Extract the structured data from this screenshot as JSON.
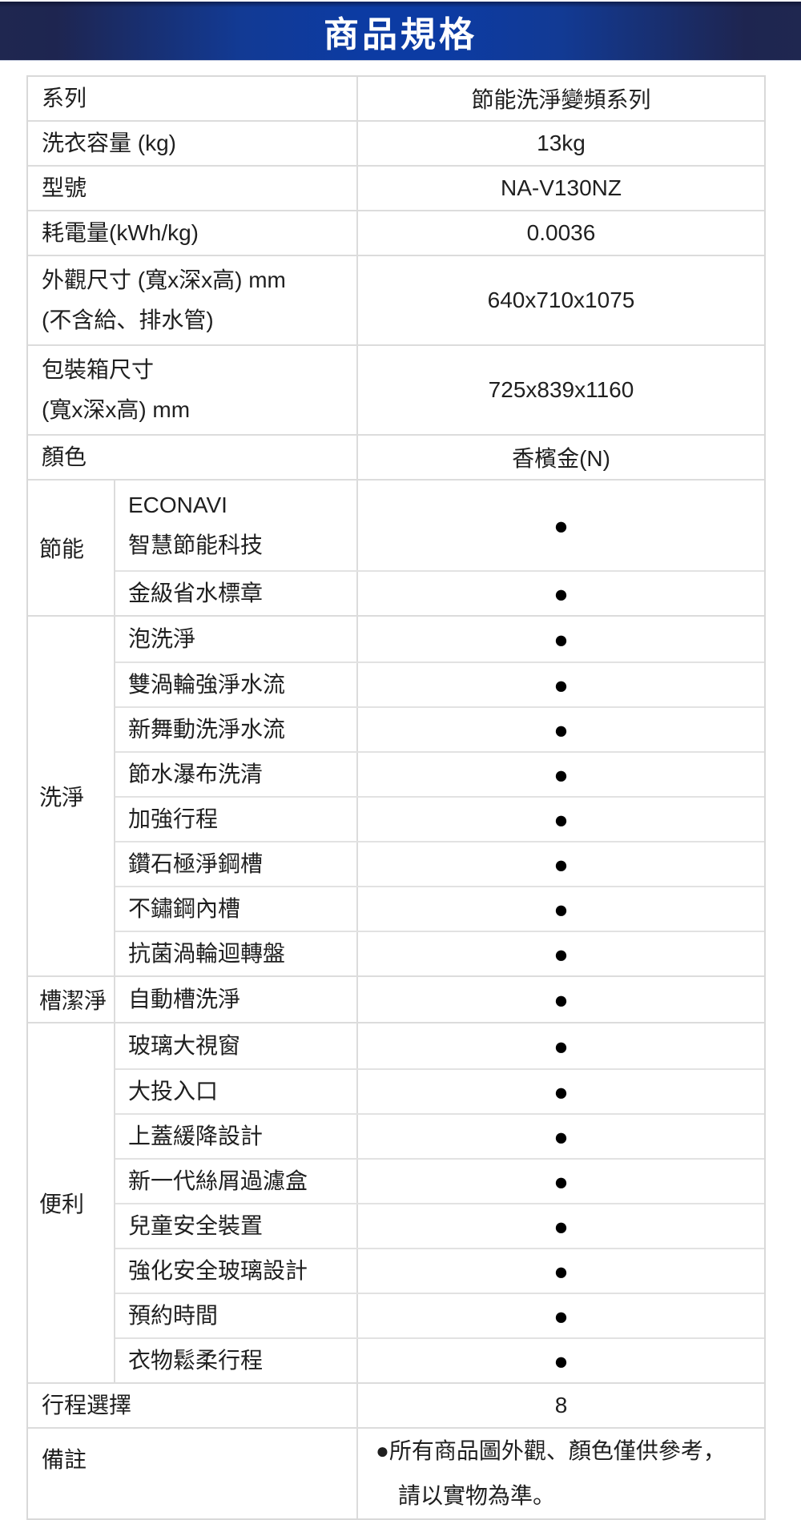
{
  "header": {
    "title": "商品規格"
  },
  "colors": {
    "banner_edge": "#1f2750",
    "banner_center": "#0c3ba3",
    "border": "#dcdcdc",
    "text": "#1f1f1f",
    "dot": "#000000"
  },
  "table": {
    "dot": "●",
    "simple_rows": [
      {
        "label": "系列",
        "value": "節能洗淨變頻系列"
      },
      {
        "label": "洗衣容量 (kg)",
        "value": "13kg"
      },
      {
        "label": "型號",
        "value": "NA-V130NZ"
      },
      {
        "label": "耗電量(kWh/kg)",
        "value": "0.0036"
      },
      {
        "label": "外觀尺寸 (寬x深x高) mm",
        "label2": "(不含給、排水管)",
        "value": "640x710x1075"
      },
      {
        "label": "包裝箱尺寸",
        "label2": "(寬x深x高) mm",
        "value": "725x839x1160"
      },
      {
        "label": "顏色",
        "value": "香檳金(N)"
      }
    ],
    "groups": [
      {
        "name": "節能",
        "features": [
          {
            "label": "ECONAVI",
            "label2": "智慧節能科技"
          },
          {
            "label": "金級省水標章"
          }
        ]
      },
      {
        "name": "洗淨",
        "features": [
          {
            "label": "泡洗淨"
          },
          {
            "label": "雙渦輪強淨水流"
          },
          {
            "label": "新舞動洗淨水流"
          },
          {
            "label": "節水瀑布洗清"
          },
          {
            "label": "加強行程"
          },
          {
            "label": "鑽石極淨鋼槽"
          },
          {
            "label": "不鏽鋼內槽"
          },
          {
            "label": "抗菌渦輪迴轉盤"
          }
        ]
      },
      {
        "name": "槽潔淨",
        "features": [
          {
            "label": "自動槽洗淨"
          }
        ]
      },
      {
        "name": "便利",
        "features": [
          {
            "label": "玻璃大視窗"
          },
          {
            "label": "大投入口"
          },
          {
            "label": "上蓋緩降設計"
          },
          {
            "label": "新一代絲屑過濾盒"
          },
          {
            "label": "兒童安全裝置"
          },
          {
            "label": "強化安全玻璃設計"
          },
          {
            "label": "預約時間"
          },
          {
            "label": "衣物鬆柔行程"
          }
        ]
      }
    ],
    "program_row": {
      "label": "行程選擇",
      "value": "8"
    },
    "note_row": {
      "label": "備註",
      "line1": "●所有商品圖外觀、顏色僅供參考，",
      "line2": "請以實物為準。"
    }
  }
}
